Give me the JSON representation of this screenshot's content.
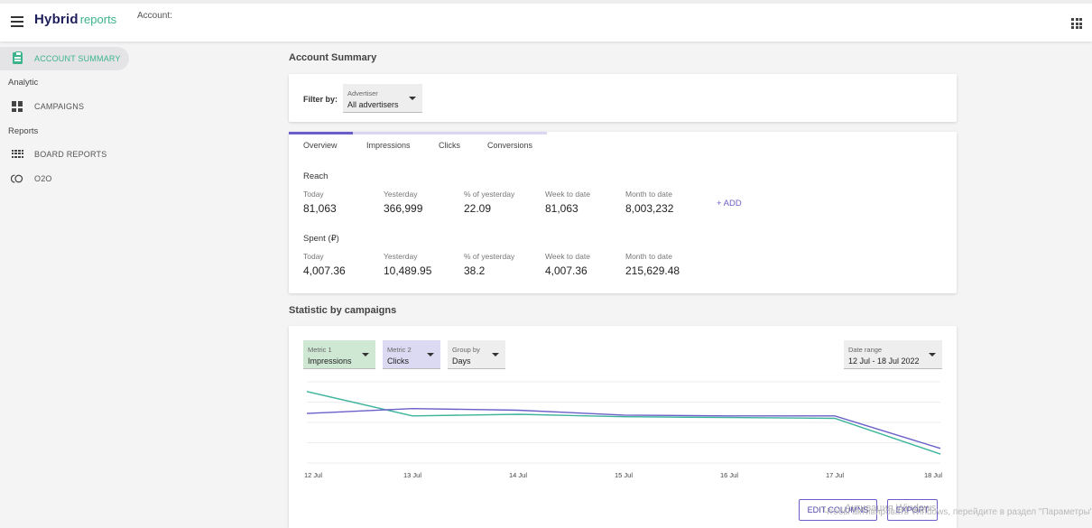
{
  "header": {
    "logo_bold": "Hybrid",
    "logo_light": "reports",
    "account_label": "Account:"
  },
  "sidebar": {
    "account_summary": "ACCOUNT SUMMARY",
    "section_analytic": "Analytic",
    "campaigns": "CAMPAIGNS",
    "section_reports": "Reports",
    "board_reports": "BOARD REPORTS",
    "o2o": "O2O"
  },
  "page_title": "Account Summary",
  "filter": {
    "label": "Filter by:",
    "advertiser_label": "Advertiser",
    "advertiser_value": "All advertisers"
  },
  "tabs": [
    "Overview",
    "Impressions",
    "Clicks",
    "Conversions"
  ],
  "reach": {
    "title": "Reach",
    "labels": [
      "Today",
      "Yesterday",
      "% of yesterday",
      "Week to date",
      "Month to date"
    ],
    "values": [
      "81,063",
      "366,999",
      "22.09",
      "81,063",
      "8,003,232"
    ],
    "add_label": "+ ADD"
  },
  "spent": {
    "title": "Spent (₽)",
    "labels": [
      "Today",
      "Yesterday",
      "% of yesterday",
      "Week to date",
      "Month to date"
    ],
    "values": [
      "4,007.36",
      "10,489.95",
      "38.2",
      "4,007.36",
      "215,629.48"
    ]
  },
  "statistic": {
    "title": "Statistic by campaigns",
    "metric1": {
      "label": "Metric 1",
      "value": "Impressions",
      "color": "#cfe8d4"
    },
    "metric2": {
      "label": "Metric 2",
      "value": "Clicks",
      "color": "#dcdaf3"
    },
    "group_by": {
      "label": "Group by",
      "value": "Days"
    },
    "date_range": {
      "label": "Date range",
      "value": "12 Jul - 18 Jul 2022"
    },
    "edit_columns": "EDIT COLUMNS",
    "export": "EXPORT"
  },
  "chart_data": {
    "type": "line",
    "x": [
      "12 Jul",
      "13 Jul",
      "14 Jul",
      "15 Jul",
      "16 Jul",
      "17 Jul",
      "18 Jul"
    ],
    "series": [
      {
        "name": "Impressions",
        "color": "#3cb39a",
        "values": [
          0.88,
          0.58,
          0.6,
          0.57,
          0.56,
          0.55,
          0.11
        ]
      },
      {
        "name": "Clicks",
        "color": "#6a5fc8",
        "values": [
          0.61,
          0.67,
          0.65,
          0.59,
          0.58,
          0.58,
          0.18
        ]
      }
    ],
    "grid": true
  },
  "watermark": {
    "line1": "Активация Windows",
    "line2": "Чтобы активировать Windows, перейдите в раздел \"Параметры\"."
  }
}
